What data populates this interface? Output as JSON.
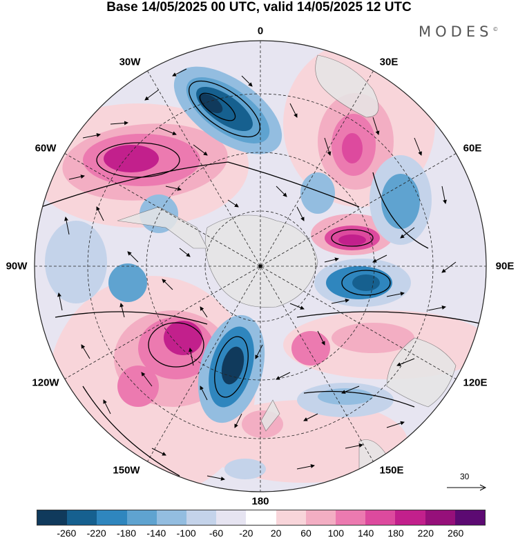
{
  "title": "Base 14/05/2025 00 UTC, valid 14/05/2025 12 UTC",
  "brand": "MODES",
  "brand_mark": "©",
  "longitude_labels": {
    "n": "0",
    "ne": "30E",
    "e60": "60E",
    "e90": "90E",
    "e120": "120E",
    "e150": "150E",
    "s": "180",
    "w150": "150W",
    "w120": "120W",
    "w90": "90W",
    "w60": "60W",
    "w30": "30W"
  },
  "reference_vector": {
    "label": "30",
    "icon": "arrow-right-icon"
  },
  "colorbar": {
    "colors": [
      "#103a5c",
      "#16608f",
      "#2f86be",
      "#5fa3d0",
      "#93bde0",
      "#c4d3ea",
      "#e6e4f1",
      "#ffffff",
      "#f8d5da",
      "#f3aec3",
      "#ec7ab0",
      "#dd4a9e",
      "#c2208c",
      "#96107a",
      "#5c0a72"
    ],
    "ticks": [
      "-260",
      "-220",
      "-180",
      "-140",
      "-100",
      "-60",
      "-20",
      "20",
      "60",
      "100",
      "140",
      "180",
      "220",
      "260"
    ]
  },
  "map": {
    "projection": "south polar stereographic",
    "land_color": "#e6e6e6",
    "positive_anomaly_color": "#dd4a9e",
    "negative_anomaly_color": "#16608f"
  }
}
